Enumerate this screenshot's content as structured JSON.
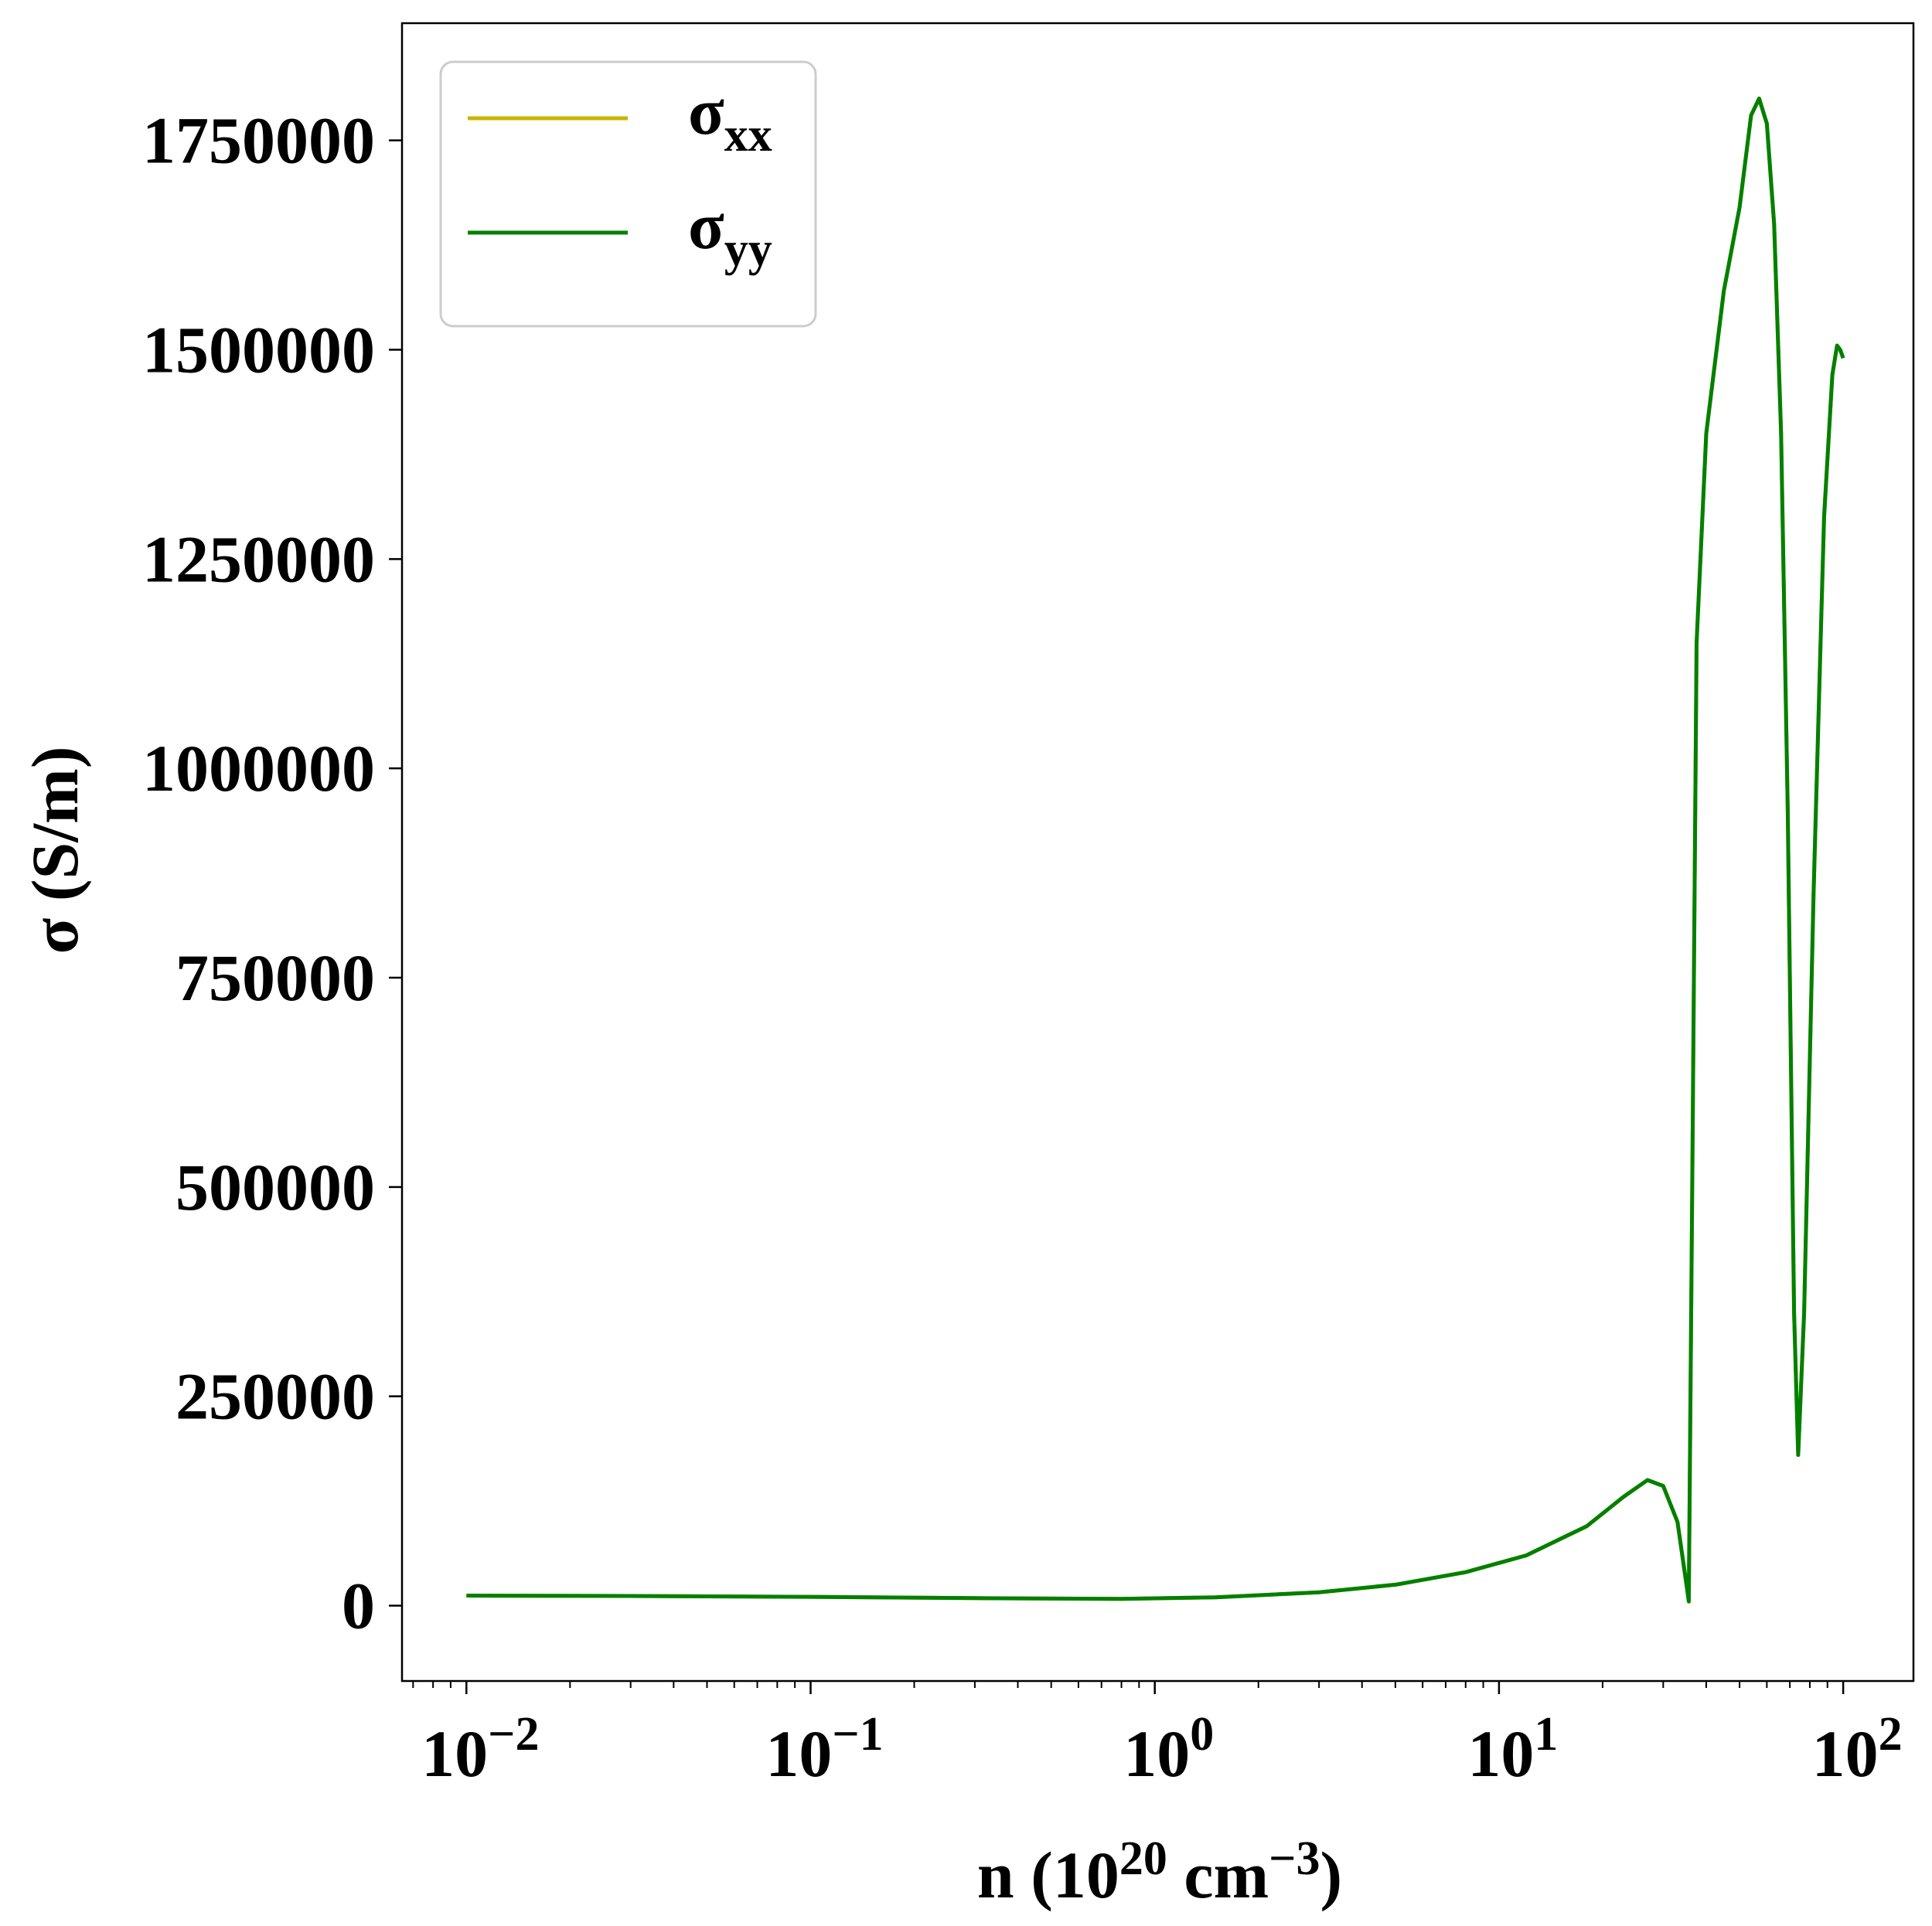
{
  "chart_data": {
    "type": "line",
    "xlabel": {
      "main": "n (10",
      "exp": "20",
      "mid": " cm",
      "exp2": "−3",
      "end": ")"
    },
    "ylabel": "σ (S/m)",
    "x_scale": "log",
    "xlim": [
      0.0065,
      160
    ],
    "ylim": [
      -90000,
      1890000
    ],
    "x_ticks": [
      {
        "value": 0.01,
        "base": "10",
        "exp": "−2"
      },
      {
        "value": 0.1,
        "base": "10",
        "exp": "−1"
      },
      {
        "value": 1,
        "base": "10",
        "exp": "0"
      },
      {
        "value": 10,
        "base": "10",
        "exp": "1"
      },
      {
        "value": 100,
        "base": "10",
        "exp": "2"
      }
    ],
    "y_ticks": [
      {
        "value": 0,
        "label": "0"
      },
      {
        "value": 250000,
        "label": "250000"
      },
      {
        "value": 500000,
        "label": "500000"
      },
      {
        "value": 750000,
        "label": "750000"
      },
      {
        "value": 1000000,
        "label": "1000000"
      },
      {
        "value": 1250000,
        "label": "1250000"
      },
      {
        "value": 1500000,
        "label": "1500000"
      },
      {
        "value": 1750000,
        "label": "1750000"
      }
    ],
    "grid": false,
    "legend": {
      "placement": "top-left"
    },
    "series": [
      {
        "name": "σ",
        "sub": "xx",
        "color": "#c8b400",
        "x": [
          0.01,
          0.03,
          0.1,
          0.3,
          0.8,
          1.5,
          3,
          5,
          8,
          12,
          18,
          23,
          27,
          30,
          33,
          35.2,
          35.6,
          36.5,
          37.5,
          40,
          45,
          50,
          54,
          57,
          60,
          63,
          66,
          69,
          72,
          74,
          77,
          82,
          88,
          93,
          96,
          98,
          100
        ],
        "values": [
          12000,
          11500,
          10500,
          9000,
          8000,
          10000,
          16000,
          25000,
          40000,
          60000,
          95000,
          130000,
          150000,
          143000,
          100000,
          20000,
          5000,
          550000,
          1150000,
          1400000,
          1570000,
          1670000,
          1780000,
          1800000,
          1770000,
          1650000,
          1400000,
          950000,
          350000,
          180000,
          350000,
          850000,
          1300000,
          1470000,
          1505000,
          1500000,
          1490000
        ]
      },
      {
        "name": "σ",
        "sub": "yy",
        "color": "#008000",
        "x": [
          0.01,
          0.03,
          0.1,
          0.3,
          0.8,
          1.5,
          3,
          5,
          8,
          12,
          18,
          23,
          27,
          30,
          33,
          35.2,
          35.6,
          36.5,
          37.5,
          40,
          45,
          50,
          54,
          57,
          60,
          63,
          66,
          69,
          72,
          74,
          77,
          82,
          88,
          93,
          96,
          98,
          100
        ],
        "values": [
          12000,
          11500,
          10500,
          9000,
          8000,
          10000,
          16000,
          25000,
          40000,
          60000,
          95000,
          130000,
          150000,
          143000,
          100000,
          20000,
          5000,
          550000,
          1150000,
          1400000,
          1570000,
          1670000,
          1780000,
          1800000,
          1770000,
          1650000,
          1400000,
          950000,
          350000,
          180000,
          350000,
          850000,
          1300000,
          1470000,
          1505000,
          1500000,
          1490000
        ]
      }
    ]
  }
}
